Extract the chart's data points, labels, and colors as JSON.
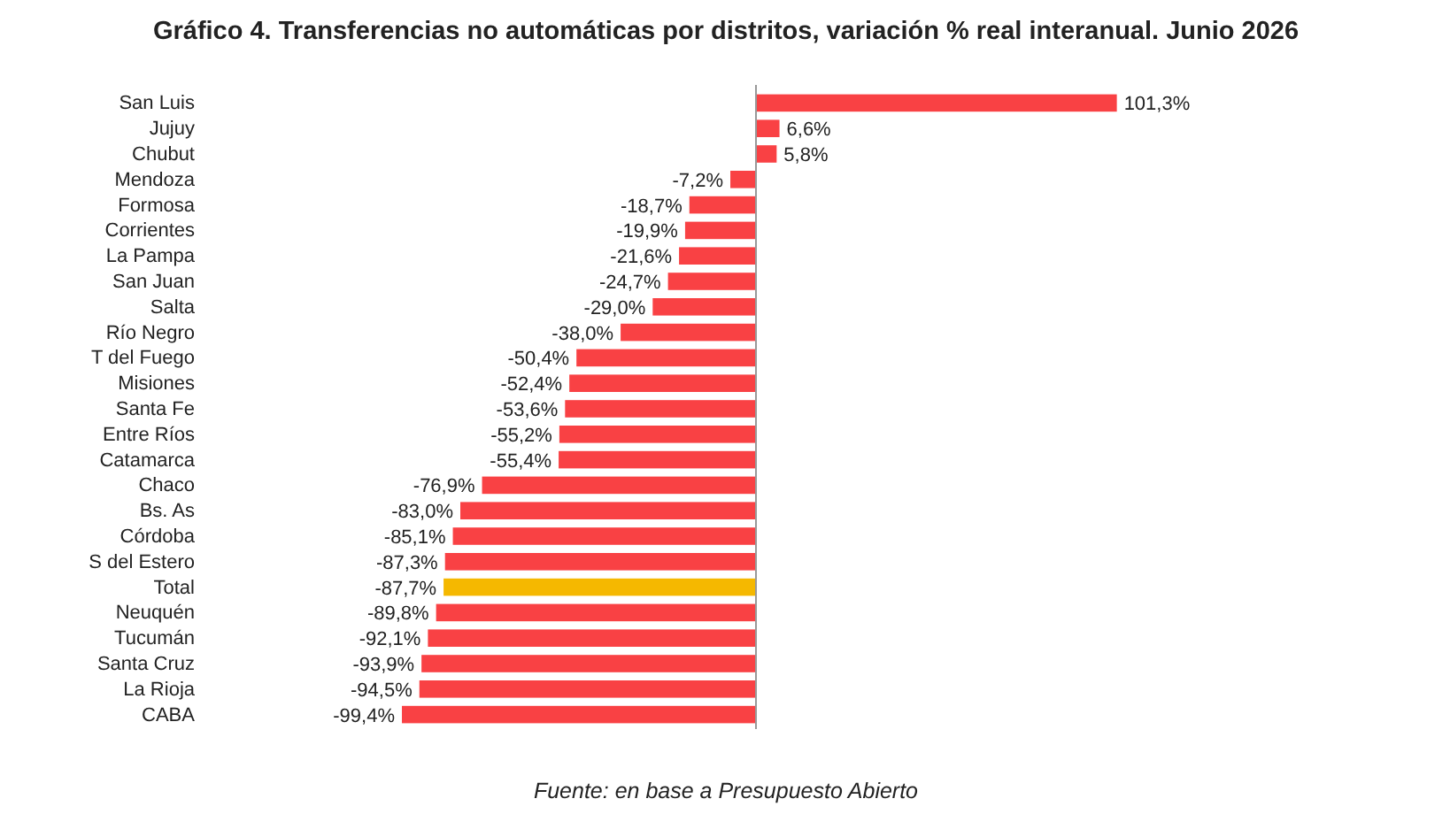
{
  "chart_data": {
    "type": "bar",
    "orientation": "horizontal",
    "title": "Gráfico 4. Transferencias no automáticas por distritos, variación % real interanual. Junio 2026",
    "categories": [
      "San Luis",
      "Jujuy",
      "Chubut",
      "Mendoza",
      "Formosa",
      "Corrientes",
      "La Pampa",
      "San Juan",
      "Salta",
      "Río Negro",
      "T del Fuego",
      "Misiones",
      "Santa Fe",
      "Entre Ríos",
      "Catamarca",
      "Chaco",
      "Bs. As",
      "Córdoba",
      "S del Estero",
      "Total",
      "Neuquén",
      "Tucumán",
      "Santa Cruz",
      "La Rioja",
      "CABA"
    ],
    "values": [
      101.3,
      6.6,
      5.8,
      -7.2,
      -18.7,
      -19.9,
      -21.6,
      -24.7,
      -29.0,
      -38.0,
      -50.4,
      -52.4,
      -53.6,
      -55.2,
      -55.4,
      -76.9,
      -83.0,
      -85.1,
      -87.3,
      -87.7,
      -89.8,
      -92.1,
      -93.9,
      -94.5,
      -99.4
    ],
    "value_labels": [
      "101,3%",
      "6,6%",
      "5,8%",
      "-7,2%",
      "-18,7%",
      "-19,9%",
      "-21,6%",
      "-24,7%",
      "-29,0%",
      "-38,0%",
      "-50,4%",
      "-52,4%",
      "-53,6%",
      "-55,2%",
      "-55,4%",
      "-76,9%",
      "-83,0%",
      "-85,1%",
      "-87,3%",
      "-87,7%",
      "-89,8%",
      "-92,1%",
      "-93,9%",
      "-94,5%",
      "-99,4%"
    ],
    "colors": [
      "#f94144",
      "#f94144",
      "#f94144",
      "#f94144",
      "#f94144",
      "#f94144",
      "#f94144",
      "#f94144",
      "#f94144",
      "#f94144",
      "#f94144",
      "#f94144",
      "#f94144",
      "#f94144",
      "#f94144",
      "#f94144",
      "#f94144",
      "#f94144",
      "#f94144",
      "#f5b800",
      "#f94144",
      "#f94144",
      "#f94144",
      "#f94144",
      "#f94144"
    ],
    "tick_labels": "y",
    "annotations": [
      "Fuente: en base a Presupuesto Abierto"
    ]
  }
}
